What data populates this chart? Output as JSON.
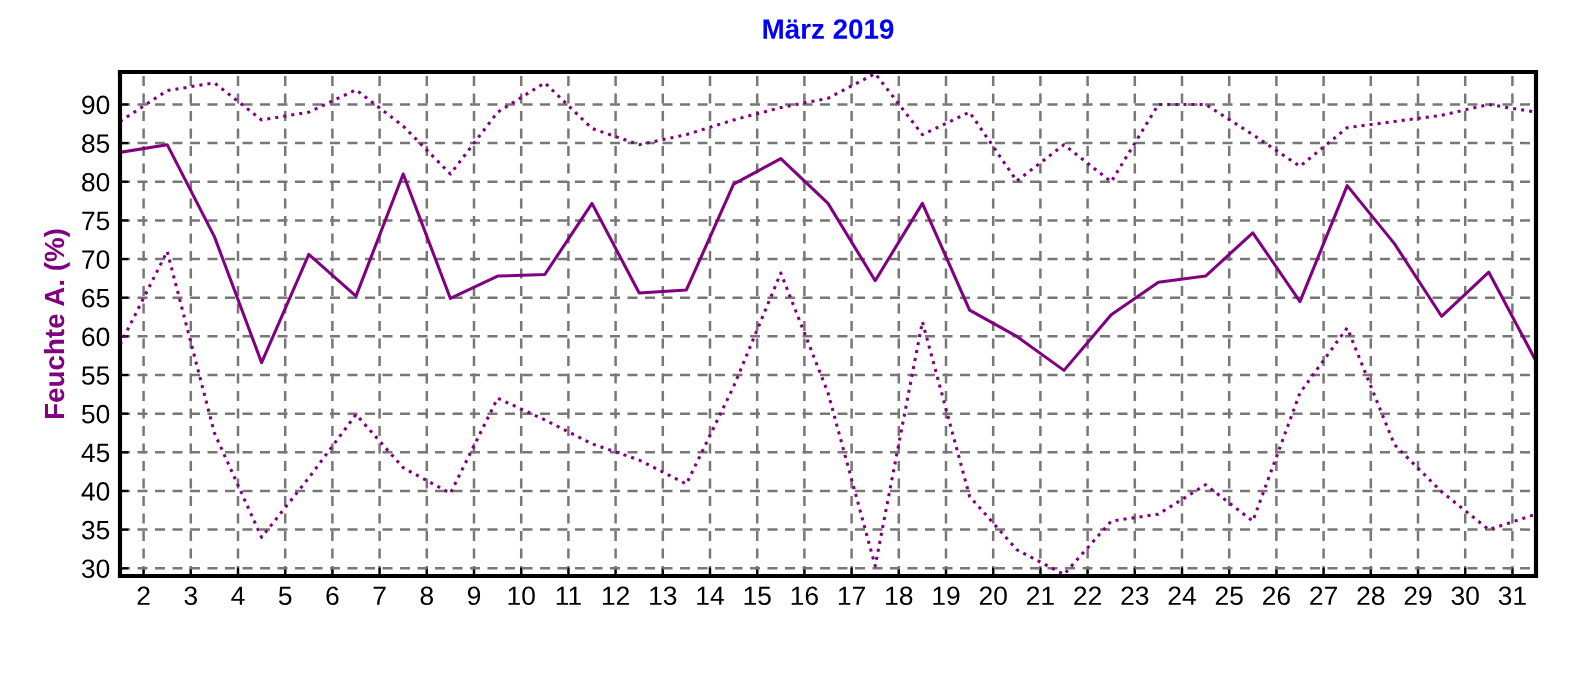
{
  "chart_data": {
    "type": "line",
    "title": "März 2019",
    "ylabel": "Feuchte A. (%)",
    "x": [
      1.5,
      2.5,
      3.5,
      4.5,
      5.5,
      6.5,
      7.5,
      8.5,
      9.5,
      10.5,
      11.5,
      12.5,
      13.5,
      14.5,
      15.5,
      16.5,
      17.5,
      18.5,
      19.5,
      20.5,
      21.5,
      22.5,
      23.5,
      24.5,
      25.5,
      26.5,
      27.5,
      28.5,
      29.5,
      30.5,
      31.5
    ],
    "series": [
      {
        "color": "#800080",
        "line_style": "dotted",
        "values": [
          87.8,
          91.8,
          92.8,
          88,
          89,
          91.9,
          87.2,
          81,
          89,
          92.8,
          86.9,
          84.8,
          86.1,
          88,
          89.6,
          90.8,
          94,
          86.1,
          89,
          80.1,
          84.8,
          80,
          90,
          90,
          86.1,
          82,
          87,
          87.8,
          88.6,
          90,
          89
        ]
      },
      {
        "color": "#800080",
        "line_style": "solid",
        "values": [
          83.8,
          84.8,
          72.9,
          56.6,
          70.6,
          65.2,
          81,
          64.9,
          67.8,
          68,
          77.2,
          65.6,
          66,
          79.7,
          83,
          77.2,
          67.2,
          77.2,
          63.4,
          60,
          55.6,
          62.8,
          67,
          67.8,
          73.4,
          64.5,
          79.5,
          72,
          62.6,
          68.3,
          56.8
        ]
      },
      {
        "color": "#800080",
        "line_style": "dotted",
        "values": [
          58.9,
          71,
          47.5,
          34,
          41.7,
          49.9,
          43,
          39.7,
          52,
          49.2,
          46.1,
          44,
          40.9,
          53.5,
          68.2,
          52.7,
          30.3,
          61.9,
          39.3,
          32.4,
          29.2,
          36.1,
          37,
          40.8,
          36.1,
          52.7,
          61.1,
          46,
          39.9,
          35,
          37
        ]
      }
    ],
    "xlim": [
      1.5,
      31.5
    ],
    "xticks": [
      2,
      3,
      4,
      5,
      6,
      7,
      8,
      9,
      10,
      11,
      12,
      13,
      14,
      15,
      16,
      17,
      18,
      19,
      20,
      21,
      22,
      23,
      24,
      25,
      26,
      27,
      28,
      29,
      30,
      31
    ],
    "ylim": [
      29,
      94.2
    ],
    "yticks": [
      30,
      35,
      40,
      45,
      50,
      55,
      60,
      65,
      70,
      75,
      80,
      85,
      90
    ],
    "grid": true,
    "legend": false,
    "marker": "none"
  }
}
